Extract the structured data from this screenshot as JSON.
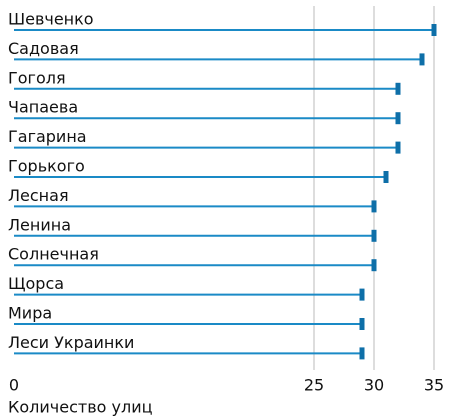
{
  "chart_data": {
    "type": "bar",
    "orientation": "horizontal",
    "categories": [
      "Шевченко",
      "Садовая",
      "Гоголя",
      "Чапаева",
      "Гагарина",
      "Горького",
      "Лесная",
      "Ленина",
      "Солнечная",
      "Щорса",
      "Мира",
      "Леси Украинки"
    ],
    "values": [
      35,
      34,
      32,
      32,
      32,
      31,
      30,
      30,
      30,
      29,
      29,
      29
    ],
    "color": "#1a8ac6",
    "marker_color": "#0e6fa8",
    "xlabel": "Количество улиц",
    "xlim": [
      0,
      35.5
    ],
    "xticks": [
      0,
      25,
      30,
      35
    ],
    "grid": true
  }
}
